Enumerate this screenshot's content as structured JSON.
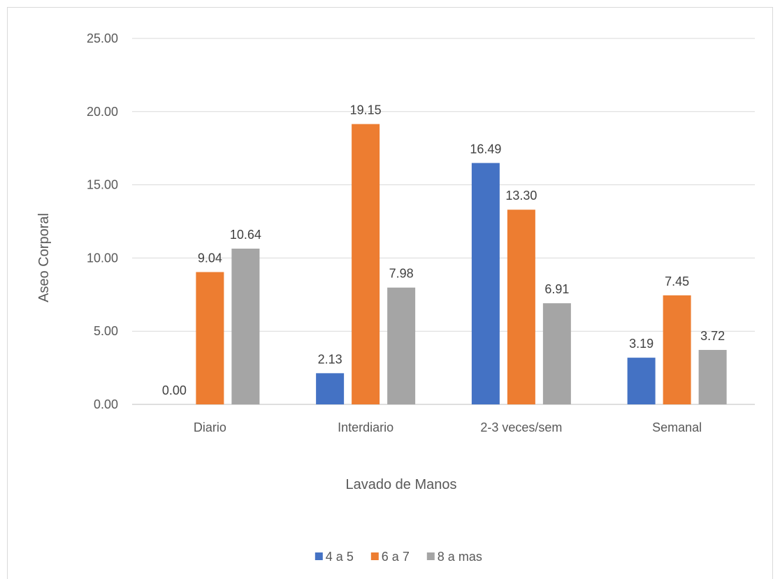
{
  "chart_data": {
    "type": "bar",
    "xlabel": "Lavado de Manos",
    "ylabel": "Aseo Corporal",
    "categories": [
      "Diario",
      "Interdiario",
      "2-3 veces/sem",
      "Semanal"
    ],
    "series": [
      {
        "name": "4 a 5",
        "color": "#4472c4",
        "values": [
          0.0,
          2.13,
          16.49,
          3.19
        ],
        "labels": [
          "0.00",
          "2.13",
          "16.49",
          "3.19"
        ]
      },
      {
        "name": "6 a 7",
        "color": "#ed7d31",
        "values": [
          9.04,
          19.15,
          13.3,
          7.45
        ],
        "labels": [
          "9.04",
          "19.15",
          "13.30",
          "7.45"
        ]
      },
      {
        "name": "8 a mas",
        "color": "#a5a5a5",
        "values": [
          10.64,
          7.98,
          6.91,
          3.72
        ],
        "labels": [
          "10.64",
          "7.98",
          "6.91",
          "3.72"
        ]
      }
    ],
    "ylim": [
      0,
      25
    ],
    "yticks": [
      "0.00",
      "5.00",
      "10.00",
      "15.00",
      "20.00",
      "25.00"
    ],
    "grid": true,
    "legend_position": "bottom"
  }
}
